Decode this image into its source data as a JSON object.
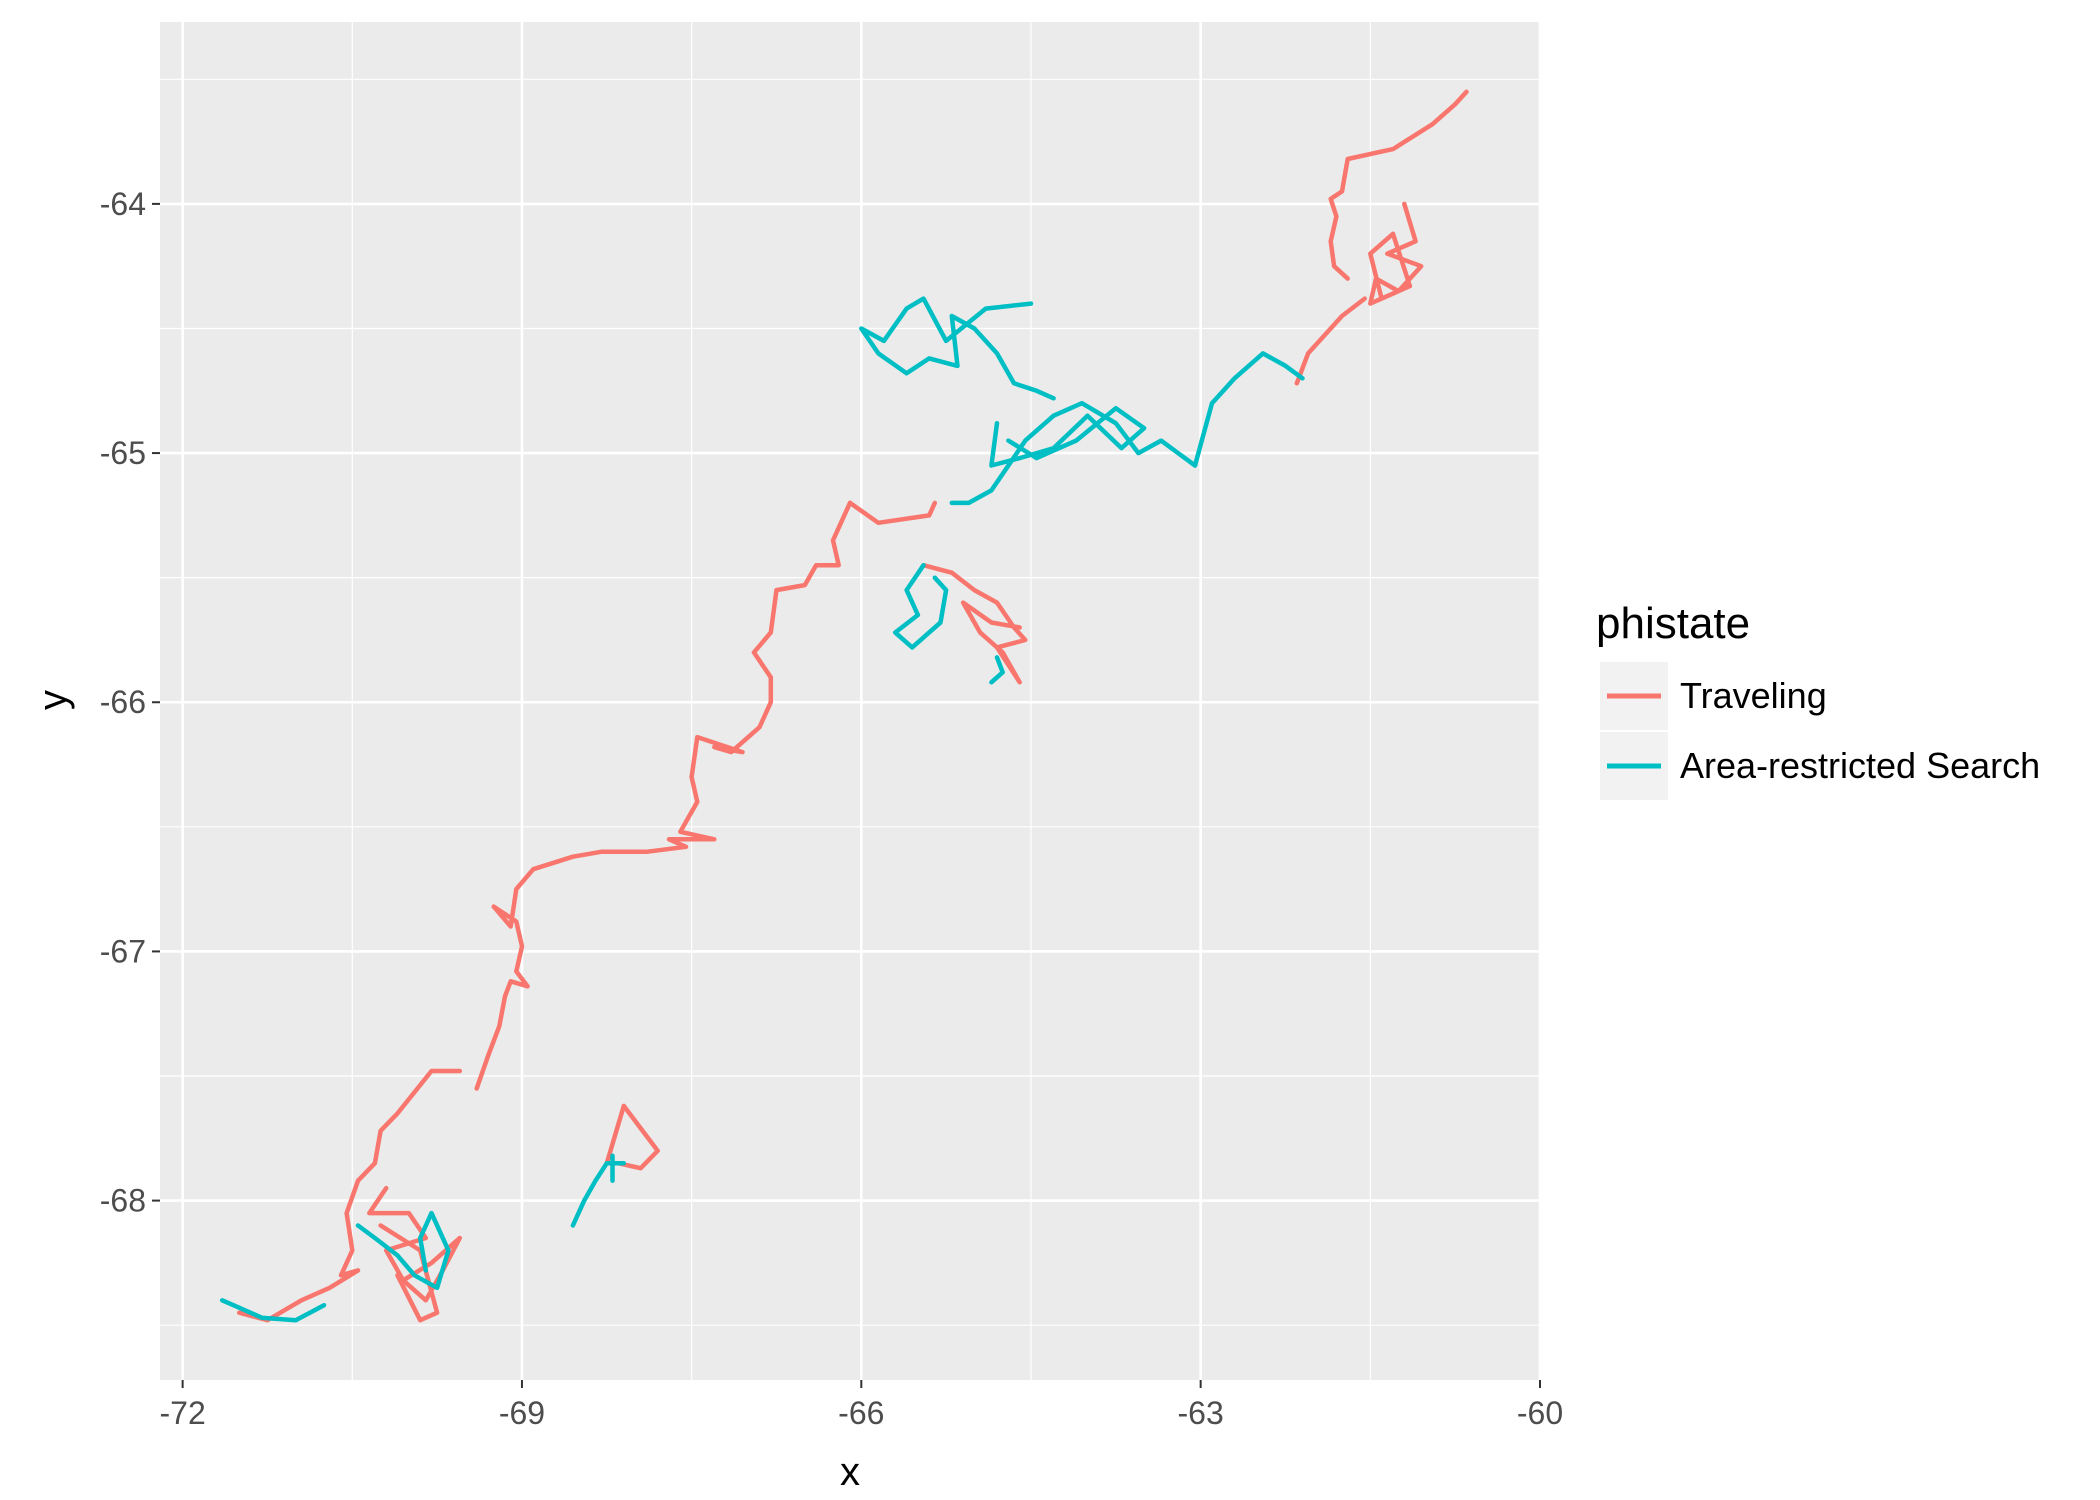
{
  "chart_data": {
    "type": "line",
    "title": "",
    "xlabel": "x",
    "ylabel": "y",
    "xlim": [
      -72.2,
      -60
    ],
    "ylim": [
      -68.72,
      -63.27
    ],
    "x_ticks": [
      -72,
      -69,
      -66,
      -63,
      -60
    ],
    "y_ticks": [
      -64,
      -65,
      -66,
      -67,
      -68
    ],
    "x_tick_labels": [
      "-72",
      "-69",
      "-66",
      "-63",
      "-60"
    ],
    "y_tick_labels": [
      "-64",
      "-65",
      "-66",
      "-67",
      "-68"
    ],
    "grid": true,
    "legend": {
      "title": "phistate",
      "position": "right",
      "entries": [
        {
          "label": "Traveling",
          "color": "#F8766D"
        },
        {
          "label": "Area-restricted Search",
          "color": "#00BFC4"
        }
      ]
    },
    "series": [
      {
        "name": "Traveling",
        "color": "#F8766D",
        "segments": [
          [
            [
              -60.65,
              -63.55
            ],
            [
              -60.75,
              -63.6
            ],
            [
              -60.95,
              -63.68
            ],
            [
              -61.3,
              -63.78
            ],
            [
              -61.7,
              -63.82
            ],
            [
              -61.75,
              -63.95
            ],
            [
              -61.85,
              -63.98
            ],
            [
              -61.8,
              -64.05
            ],
            [
              -61.85,
              -64.15
            ],
            [
              -61.82,
              -64.25
            ],
            [
              -61.7,
              -64.3
            ]
          ],
          [
            [
              -61.2,
              -64.0
            ],
            [
              -61.1,
              -64.15
            ],
            [
              -61.35,
              -64.2
            ],
            [
              -61.05,
              -64.25
            ],
            [
              -61.25,
              -64.35
            ],
            [
              -61.45,
              -64.3
            ],
            [
              -61.5,
              -64.4
            ],
            [
              -61.15,
              -64.33
            ],
            [
              -61.3,
              -64.12
            ],
            [
              -61.5,
              -64.2
            ],
            [
              -61.4,
              -64.38
            ]
          ],
          [
            [
              -61.55,
              -64.38
            ],
            [
              -61.75,
              -64.45
            ],
            [
              -61.85,
              -64.5
            ],
            [
              -62.05,
              -64.6
            ],
            [
              -62.15,
              -64.72
            ]
          ],
          [
            [
              -66.1,
              -65.2
            ],
            [
              -65.85,
              -65.28
            ],
            [
              -65.4,
              -65.25
            ],
            [
              -65.35,
              -65.2
            ]
          ],
          [
            [
              -66.1,
              -65.2
            ],
            [
              -66.25,
              -65.35
            ],
            [
              -66.2,
              -65.45
            ],
            [
              -66.4,
              -65.45
            ],
            [
              -66.5,
              -65.53
            ],
            [
              -66.75,
              -65.55
            ],
            [
              -66.8,
              -65.72
            ],
            [
              -66.95,
              -65.8
            ],
            [
              -66.8,
              -65.9
            ],
            [
              -66.8,
              -66.0
            ],
            [
              -66.9,
              -66.1
            ],
            [
              -67.15,
              -66.2
            ],
            [
              -67.3,
              -66.18
            ],
            [
              -67.05,
              -66.2
            ],
            [
              -67.45,
              -66.14
            ],
            [
              -67.5,
              -66.3
            ],
            [
              -67.45,
              -66.4
            ],
            [
              -67.6,
              -66.52
            ],
            [
              -67.3,
              -66.55
            ],
            [
              -67.7,
              -66.55
            ],
            [
              -67.55,
              -66.58
            ],
            [
              -67.9,
              -66.6
            ],
            [
              -68.3,
              -66.6
            ],
            [
              -68.55,
              -66.62
            ],
            [
              -68.9,
              -66.67
            ],
            [
              -69.05,
              -66.75
            ],
            [
              -69.1,
              -66.9
            ],
            [
              -69.25,
              -66.82
            ],
            [
              -69.05,
              -66.88
            ],
            [
              -69.0,
              -66.98
            ],
            [
              -69.05,
              -67.08
            ],
            [
              -68.95,
              -67.14
            ],
            [
              -69.1,
              -67.12
            ],
            [
              -69.15,
              -67.18
            ],
            [
              -69.2,
              -67.3
            ],
            [
              -69.3,
              -67.42
            ],
            [
              -69.4,
              -67.55
            ]
          ],
          [
            [
              -69.55,
              -67.48
            ],
            [
              -69.8,
              -67.48
            ],
            [
              -70.1,
              -67.65
            ],
            [
              -70.25,
              -67.72
            ],
            [
              -70.3,
              -67.85
            ],
            [
              -70.45,
              -67.92
            ],
            [
              -70.55,
              -68.05
            ],
            [
              -70.5,
              -68.2
            ],
            [
              -70.6,
              -68.3
            ],
            [
              -70.45,
              -68.28
            ],
            [
              -70.7,
              -68.35
            ],
            [
              -70.95,
              -68.4
            ],
            [
              -71.25,
              -68.48
            ],
            [
              -71.5,
              -68.45
            ]
          ],
          [
            [
              -70.2,
              -67.95
            ],
            [
              -70.35,
              -68.05
            ],
            [
              -70.0,
              -68.05
            ],
            [
              -69.85,
              -68.15
            ],
            [
              -70.2,
              -68.2
            ],
            [
              -70.05,
              -68.32
            ],
            [
              -69.8,
              -68.25
            ],
            [
              -69.55,
              -68.15
            ],
            [
              -69.7,
              -68.28
            ],
            [
              -69.85,
              -68.4
            ],
            [
              -70.1,
              -68.3
            ],
            [
              -69.9,
              -68.48
            ],
            [
              -69.75,
              -68.45
            ],
            [
              -69.9,
              -68.2
            ],
            [
              -70.25,
              -68.1
            ]
          ],
          [
            [
              -65.45,
              -65.45
            ],
            [
              -65.2,
              -65.48
            ],
            [
              -65.0,
              -65.55
            ],
            [
              -64.8,
              -65.6
            ],
            [
              -64.65,
              -65.7
            ],
            [
              -64.55,
              -65.75
            ],
            [
              -64.8,
              -65.78
            ],
            [
              -64.7,
              -65.85
            ],
            [
              -64.6,
              -65.92
            ],
            [
              -64.75,
              -65.8
            ],
            [
              -64.95,
              -65.72
            ],
            [
              -65.1,
              -65.6
            ],
            [
              -64.85,
              -65.68
            ],
            [
              -64.6,
              -65.7
            ]
          ],
          [
            [
              -68.25,
              -67.85
            ],
            [
              -68.1,
              -67.62
            ],
            [
              -67.8,
              -67.8
            ],
            [
              -67.95,
              -67.87
            ],
            [
              -68.15,
              -67.85
            ]
          ]
        ]
      },
      {
        "name": "Area-restricted Search",
        "color": "#00BFC4",
        "segments": [
          [
            [
              -63.05,
              -65.05
            ],
            [
              -63.2,
              -65.0
            ],
            [
              -63.35,
              -64.95
            ],
            [
              -63.55,
              -65.0
            ],
            [
              -63.75,
              -64.88
            ],
            [
              -64.05,
              -64.8
            ],
            [
              -64.3,
              -64.85
            ],
            [
              -64.55,
              -64.95
            ],
            [
              -64.7,
              -65.05
            ],
            [
              -64.85,
              -65.15
            ],
            [
              -65.05,
              -65.2
            ],
            [
              -65.2,
              -65.2
            ]
          ],
          [
            [
              -63.05,
              -65.05
            ],
            [
              -62.9,
              -64.8
            ],
            [
              -62.7,
              -64.7
            ],
            [
              -62.45,
              -64.6
            ],
            [
              -62.25,
              -64.65
            ],
            [
              -62.1,
              -64.7
            ]
          ],
          [
            [
              -64.5,
              -64.4
            ],
            [
              -64.9,
              -64.42
            ],
            [
              -65.25,
              -64.55
            ],
            [
              -65.45,
              -64.38
            ],
            [
              -65.6,
              -64.42
            ],
            [
              -65.8,
              -64.55
            ],
            [
              -66.0,
              -64.5
            ],
            [
              -65.85,
              -64.6
            ],
            [
              -65.6,
              -64.68
            ],
            [
              -65.4,
              -64.62
            ],
            [
              -65.15,
              -64.65
            ],
            [
              -65.2,
              -64.45
            ],
            [
              -65.0,
              -64.5
            ],
            [
              -64.8,
              -64.6
            ],
            [
              -64.65,
              -64.72
            ],
            [
              -64.45,
              -64.75
            ],
            [
              -64.3,
              -64.78
            ]
          ],
          [
            [
              -64.8,
              -64.88
            ],
            [
              -64.85,
              -65.05
            ],
            [
              -64.6,
              -65.02
            ],
            [
              -64.3,
              -64.98
            ],
            [
              -64.0,
              -64.85
            ],
            [
              -63.7,
              -64.98
            ],
            [
              -63.5,
              -64.9
            ],
            [
              -63.75,
              -64.82
            ],
            [
              -64.1,
              -64.95
            ],
            [
              -64.45,
              -65.02
            ],
            [
              -64.7,
              -64.95
            ]
          ],
          [
            [
              -65.45,
              -65.45
            ],
            [
              -65.6,
              -65.55
            ],
            [
              -65.5,
              -65.65
            ],
            [
              -65.7,
              -65.72
            ],
            [
              -65.55,
              -65.78
            ],
            [
              -65.3,
              -65.68
            ],
            [
              -65.25,
              -65.55
            ],
            [
              -65.35,
              -65.5
            ]
          ],
          [
            [
              -64.8,
              -65.82
            ],
            [
              -64.75,
              -65.88
            ],
            [
              -64.85,
              -65.92
            ]
          ],
          [
            [
              -71.65,
              -68.4
            ],
            [
              -71.55,
              -68.42
            ],
            [
              -71.3,
              -68.47
            ],
            [
              -71.0,
              -68.48
            ],
            [
              -70.75,
              -68.42
            ]
          ],
          [
            [
              -70.45,
              -68.1
            ],
            [
              -70.3,
              -68.15
            ],
            [
              -70.1,
              -68.22
            ],
            [
              -69.95,
              -68.3
            ],
            [
              -69.75,
              -68.35
            ],
            [
              -69.65,
              -68.2
            ],
            [
              -69.8,
              -68.05
            ],
            [
              -69.9,
              -68.15
            ],
            [
              -69.85,
              -68.28
            ]
          ],
          [
            [
              -68.55,
              -68.1
            ],
            [
              -68.45,
              -68.0
            ],
            [
              -68.35,
              -67.92
            ],
            [
              -68.25,
              -67.85
            ],
            [
              -68.1,
              -67.85
            ]
          ],
          [
            [
              -68.2,
              -67.82
            ],
            [
              -68.2,
              -67.92
            ]
          ]
        ]
      }
    ]
  }
}
